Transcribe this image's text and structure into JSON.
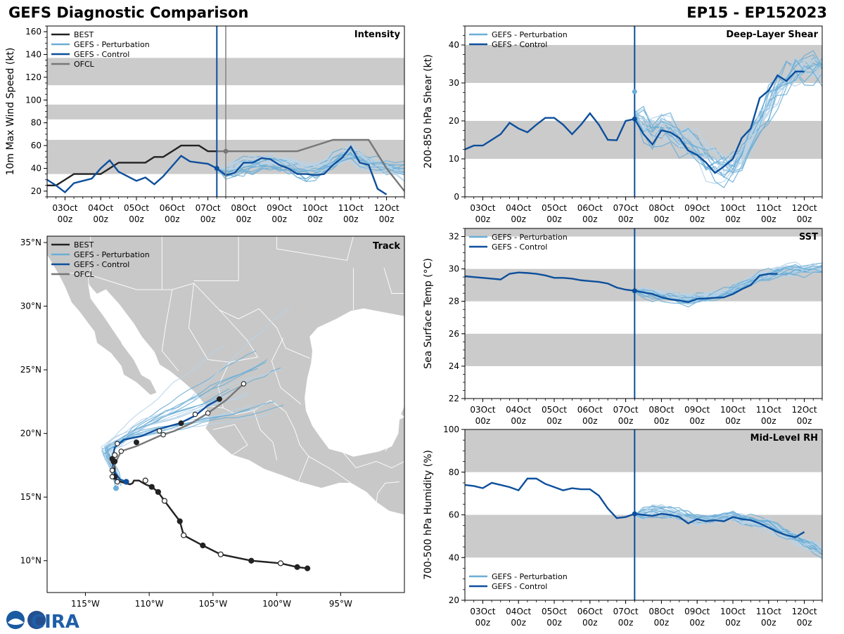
{
  "header": {
    "title_left": "GEFS Diagnostic Comparison",
    "title_right": "EP15 - EP152023",
    "logo_text": "CIRA"
  },
  "colors": {
    "best": "#222222",
    "perturbation": "#6baed6",
    "perturbation_light": "#b7d4ea",
    "control": "#0d4f9c",
    "ofcl": "#777777",
    "band": "#cbcbcb",
    "land": "#c8c8c8",
    "init_line": "#0d4f9c",
    "ofcl_line": "#888888"
  },
  "time_axis": {
    "tick_days": [
      3,
      4,
      5,
      6,
      7,
      8,
      9,
      10,
      11,
      12
    ],
    "tick_labels_top": [
      "03Oct",
      "04Oct",
      "05Oct",
      "06Oct",
      "07Oct",
      "08Oct",
      "09Oct",
      "10Oct",
      "11Oct",
      "12Oct"
    ],
    "tick_labels_bottom": [
      "00z",
      "00z",
      "00z",
      "00z",
      "00z",
      "00z",
      "00z",
      "00z",
      "00z",
      "00z"
    ],
    "range_days": [
      2.5,
      12.5
    ],
    "init_day": 7.25,
    "ofcl_day": 7.5
  },
  "chart_data": [
    {
      "id": "intensity",
      "type": "line",
      "title": "Intensity",
      "ylabel": "10m Max Wind Speed (kt)",
      "ylim": [
        15,
        165
      ],
      "yticks": [
        20,
        40,
        60,
        80,
        100,
        120,
        140,
        160
      ],
      "bands": [
        [
          35,
          65
        ],
        [
          83,
          96
        ],
        [
          113,
          137
        ]
      ],
      "legend": [
        "BEST",
        "GEFS - Perturbation",
        "GEFS - Control",
        "OFCL"
      ],
      "best": {
        "x": [
          2.5,
          2.75,
          3.0,
          3.25,
          3.5,
          3.75,
          4.0,
          4.25,
          4.5,
          4.75,
          5.0,
          5.25,
          5.5,
          5.75,
          6.0,
          6.25,
          6.5,
          6.75,
          7.0,
          7.25
        ],
        "y": [
          25,
          25,
          30,
          35,
          35,
          35,
          35,
          40,
          45,
          45,
          45,
          45,
          50,
          50,
          55,
          60,
          60,
          60,
          55,
          55
        ]
      },
      "control": {
        "x": [
          2.5,
          2.75,
          3.0,
          3.25,
          3.5,
          3.75,
          4.0,
          4.25,
          4.5,
          4.75,
          5.0,
          5.25,
          5.5,
          5.75,
          6.0,
          6.25,
          6.5,
          6.75,
          7.0,
          7.25,
          7.5,
          7.75,
          8.0,
          8.25,
          8.5,
          8.75,
          9.0,
          9.25,
          9.5,
          9.75,
          10.0,
          10.25,
          10.5,
          10.75,
          11.0,
          11.25,
          11.5,
          11.75,
          12.0
        ],
        "y": [
          30,
          25,
          19,
          27,
          29,
          31,
          40,
          47,
          37,
          33,
          29,
          32,
          26,
          33,
          42,
          51,
          46,
          45,
          44,
          40,
          34,
          36,
          45,
          45,
          49,
          48,
          43,
          40,
          35,
          35,
          34,
          35,
          43,
          49,
          59,
          45,
          43,
          22,
          17
        ]
      },
      "ofcl": {
        "x": [
          7.25,
          7.5,
          8.0,
          8.5,
          9.0,
          9.5,
          10.0,
          10.5,
          11.0,
          11.5,
          12.0,
          12.5
        ],
        "y": [
          55,
          55,
          55,
          55,
          55,
          55,
          60,
          65,
          65,
          65,
          40,
          20
        ]
      },
      "pert_spread": {
        "start": 7.25,
        "end": 12.5,
        "base": [
          40,
          38,
          40,
          42,
          44,
          45,
          46,
          44,
          42,
          40,
          38,
          38,
          42,
          46,
          50,
          52,
          48,
          44,
          42,
          40,
          38,
          36
        ],
        "spread": 14
      }
    },
    {
      "id": "shear",
      "type": "line",
      "title": "Deep-Layer Shear",
      "ylabel": "200-850 hPa Shear (kt)",
      "ylim": [
        0,
        45
      ],
      "yticks": [
        0,
        10,
        20,
        30,
        40
      ],
      "bands": [
        [
          10,
          20
        ],
        [
          30,
          40
        ]
      ],
      "legend": [
        "GEFS - Perturbation",
        "GEFS - Control"
      ],
      "control": {
        "x": [
          2.5,
          2.75,
          3.0,
          3.25,
          3.5,
          3.75,
          4.0,
          4.25,
          4.5,
          4.75,
          5.0,
          5.25,
          5.5,
          5.75,
          6.0,
          6.25,
          6.5,
          6.75,
          7.0,
          7.25,
          7.5,
          7.75,
          8.0,
          8.25,
          8.5,
          8.75,
          9.0,
          9.25,
          9.5,
          9.75,
          10.0,
          10.25,
          10.5,
          10.75,
          11.0,
          11.25,
          11.5,
          11.75,
          12.0
        ],
        "y": [
          12.5,
          13.5,
          13.5,
          15,
          16.5,
          19.5,
          18,
          17,
          19,
          20.8,
          20.8,
          19,
          16.5,
          19,
          22,
          19,
          15,
          14.9,
          20,
          20.5,
          16.5,
          13.8,
          17.5,
          17,
          15.5,
          12.2,
          11,
          9,
          6.3,
          8,
          10,
          15.5,
          18,
          26,
          28,
          32,
          30.5,
          33,
          33
        ]
      },
      "pert_spread": {
        "start": 7.25,
        "end": 12.5,
        "base": [
          22,
          19,
          17,
          18,
          17,
          15,
          14,
          12,
          10,
          8,
          7,
          8,
          11,
          15,
          19,
          24,
          28,
          31,
          33,
          34,
          34,
          33
        ],
        "spread": 9
      }
    },
    {
      "id": "sst",
      "type": "line",
      "title": "SST",
      "ylabel": "Sea Surface Temp (°C)",
      "ylim": [
        22,
        32.5
      ],
      "yticks": [
        22,
        24,
        26,
        28,
        30,
        32
      ],
      "bands": [
        [
          24,
          26
        ],
        [
          28,
          30
        ],
        [
          32,
          32.5
        ]
      ],
      "legend": [
        "GEFS - Perturbation",
        "GEFS - Control"
      ],
      "control": {
        "x": [
          2.5,
          2.75,
          3.0,
          3.25,
          3.5,
          3.75,
          4.0,
          4.25,
          4.5,
          4.75,
          5.0,
          5.25,
          5.5,
          5.75,
          6.0,
          6.25,
          6.5,
          6.75,
          7.0,
          7.25,
          7.5,
          7.75,
          8.0,
          8.25,
          8.5,
          8.75,
          9.0,
          9.25,
          9.5,
          9.75,
          10.0,
          10.25,
          10.5,
          10.75,
          11.0,
          11.25
        ],
        "y": [
          29.55,
          29.5,
          29.45,
          29.4,
          29.35,
          29.7,
          29.78,
          29.75,
          29.7,
          29.6,
          29.45,
          29.45,
          29.4,
          29.3,
          29.25,
          29.2,
          29.1,
          28.85,
          28.72,
          28.65,
          28.55,
          28.45,
          28.25,
          28.12,
          28.05,
          27.95,
          28.15,
          28.18,
          28.22,
          28.25,
          28.45,
          28.75,
          29.0,
          29.6,
          29.7,
          29.7
        ]
      },
      "pert_spread": {
        "start": 7.25,
        "end": 12.5,
        "base": [
          28.65,
          28.55,
          28.45,
          28.35,
          28.3,
          28.25,
          28.2,
          28.2,
          28.25,
          28.35,
          28.5,
          28.7,
          28.95,
          29.2,
          29.45,
          29.6,
          29.75,
          29.85,
          29.9,
          29.95,
          30.0,
          30.0
        ],
        "spread": 0.7
      }
    },
    {
      "id": "rh",
      "type": "line",
      "title": "Mid-Level RH",
      "ylabel": "700-500 hPa Humidity (%)",
      "ylim": [
        20,
        100
      ],
      "yticks": [
        20,
        40,
        60,
        80,
        100
      ],
      "bands": [
        [
          40,
          60
        ],
        [
          80,
          100
        ]
      ],
      "legend": [
        "GEFS - Perturbation",
        "GEFS - Control"
      ],
      "control": {
        "x": [
          2.5,
          2.75,
          3.0,
          3.25,
          3.5,
          3.75,
          4.0,
          4.25,
          4.5,
          4.75,
          5.0,
          5.25,
          5.5,
          5.75,
          6.0,
          6.25,
          6.5,
          6.75,
          7.0,
          7.25,
          7.5,
          7.75,
          8.0,
          8.25,
          8.5,
          8.75,
          9.0,
          9.25,
          9.5,
          9.75,
          10.0,
          10.25,
          10.5,
          10.75,
          11.0,
          11.25,
          11.5,
          11.75,
          12.0
        ],
        "y": [
          74,
          73.5,
          72.5,
          75,
          74,
          73,
          71.5,
          77,
          77,
          74.5,
          73,
          71.5,
          72.5,
          72,
          72,
          69,
          63,
          58.5,
          59,
          60.5,
          60,
          59.5,
          60.5,
          60,
          59,
          56,
          58,
          57,
          57.5,
          57,
          59,
          58,
          57.5,
          56,
          54,
          52,
          50.5,
          49.5,
          52
        ]
      },
      "pert_spread": {
        "start": 7.25,
        "end": 12.5,
        "base": [
          60,
          61,
          62,
          62,
          61,
          60,
          59,
          58,
          58,
          58,
          59,
          59,
          58,
          57,
          56,
          55,
          53,
          51,
          49,
          47,
          45,
          43
        ],
        "spread": 6
      }
    }
  ],
  "track_map": {
    "title": "Track",
    "legend": [
      "BEST",
      "GEFS - Perturbation",
      "GEFS - Control",
      "OFCL"
    ],
    "lon_range": [
      -118,
      -90
    ],
    "lat_range": [
      7.5,
      35.5
    ],
    "lon_ticks": [
      -115,
      -110,
      -105,
      -100,
      -95
    ],
    "lon_labels": [
      "115°W",
      "110°W",
      "105°W",
      "100°W",
      "95°W"
    ],
    "lat_ticks": [
      10,
      15,
      20,
      25,
      30,
      35
    ],
    "lat_labels": [
      "10°N",
      "15°N",
      "20°N",
      "25°N",
      "30°N",
      "35°N"
    ],
    "best": {
      "lon": [
        -97.6,
        -98.4,
        -99.7,
        -102,
        -104.4,
        -105.8,
        -107.3,
        -107.6,
        -108.8,
        -109.3,
        -109.8,
        -110.3,
        -110.8,
        -111.2,
        -111.3,
        -111.5,
        -111.9,
        -112.5,
        -112.7,
        -112.7,
        -112.8,
        -112.7
      ],
      "lat": [
        9.4,
        9.5,
        9.8,
        10.0,
        10.5,
        11.2,
        12.0,
        13.1,
        14.7,
        15.4,
        15.8,
        16.0,
        16.3,
        16.3,
        16.1,
        16.0,
        16.1,
        16.3,
        16.6,
        17.3,
        17.8,
        18.3
      ]
    },
    "best_points": {
      "lon": [
        -97.6,
        -98.4,
        -99.7,
        -102,
        -104.4,
        -105.8,
        -107.3,
        -107.6,
        -108.8,
        -109.3,
        -109.8,
        -110.3,
        -112.7,
        -112.8,
        -112.7
      ],
      "lat": [
        9.4,
        9.5,
        9.8,
        10.0,
        10.5,
        11.2,
        12.0,
        13.1,
        14.7,
        15.4,
        15.8,
        16.3,
        16.6,
        17.8,
        18.3
      ],
      "hollow": [
        false,
        false,
        true,
        false,
        true,
        false,
        true,
        false,
        true,
        false,
        false,
        true,
        false,
        false,
        true
      ]
    },
    "control": {
      "lon": [
        -111.8,
        -112.3,
        -112.8,
        -112.9,
        -112.7,
        -112.0,
        -110.6,
        -109.4,
        -107.6,
        -106.4,
        -105.4,
        -104.5
      ],
      "lat": [
        16.2,
        16.4,
        17.1,
        18.0,
        18.9,
        19.5,
        19.8,
        20.3,
        20.8,
        21.4,
        22.2,
        22.7
      ]
    },
    "ofcl": {
      "lon": [
        -112.5,
        -112.9,
        -112.9,
        -112.6,
        -112.2,
        -111.0,
        -109.2,
        -108.0,
        -106.7,
        -105.4,
        -104.0,
        -102.6
      ],
      "lat": [
        16.2,
        16.6,
        17.1,
        17.8,
        18.6,
        19.0,
        19.8,
        20.2,
        20.8,
        21.6,
        22.6,
        23.9
      ]
    },
    "ofcl_points": {
      "lon": [
        -112.5,
        -112.9,
        -112.9,
        -112.2,
        -112.5,
        -109.2,
        -108.9,
        -106.4,
        -105.4,
        -102.6
      ],
      "lat": [
        16.2,
        16.6,
        17.1,
        18.6,
        19.2,
        20.2,
        19.9,
        21.5,
        21.6,
        23.9
      ]
    },
    "control_points": {
      "lon": [
        -111.8,
        -112.9,
        -112.7,
        -111.0,
        -107.5,
        -104.5
      ],
      "lat": [
        16.2,
        18.0,
        17.8,
        19.3,
        20.8,
        22.7
      ]
    },
    "pert_start": {
      "lon": -112.6,
      "lat": 15.7
    }
  }
}
